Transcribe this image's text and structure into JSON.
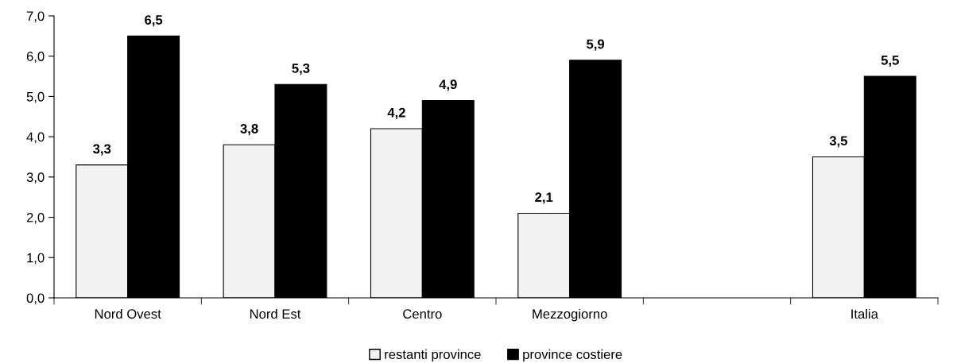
{
  "chart_data": {
    "type": "bar",
    "categories": [
      "Nord Ovest",
      "Nord Est",
      "Centro",
      "Mezzogiorno",
      null,
      "Italia"
    ],
    "series": [
      {
        "name": "restanti province",
        "color": "#f2f2f2",
        "values": [
          3.3,
          3.8,
          4.2,
          2.1,
          null,
          3.5
        ],
        "value_labels": [
          "3,3",
          "3,8",
          "4,2",
          "2,1",
          null,
          "3,5"
        ]
      },
      {
        "name": "province costiere",
        "color": "#000000",
        "values": [
          6.5,
          5.3,
          4.9,
          5.9,
          null,
          5.5
        ],
        "value_labels": [
          "6,5",
          "5,3",
          "4,9",
          "5,9",
          null,
          "5,5"
        ]
      }
    ],
    "ylim": [
      0,
      7
    ],
    "yticks": [
      {
        "value": 0,
        "label": "0,0"
      },
      {
        "value": 1,
        "label": "1,0"
      },
      {
        "value": 2,
        "label": "2,0"
      },
      {
        "value": 3,
        "label": "3,0"
      },
      {
        "value": 4,
        "label": "4,0"
      },
      {
        "value": 5,
        "label": "5,0"
      },
      {
        "value": 6,
        "label": "6,0"
      },
      {
        "value": 7,
        "label": "7,0"
      }
    ],
    "grid": false,
    "legend": "bottom"
  }
}
